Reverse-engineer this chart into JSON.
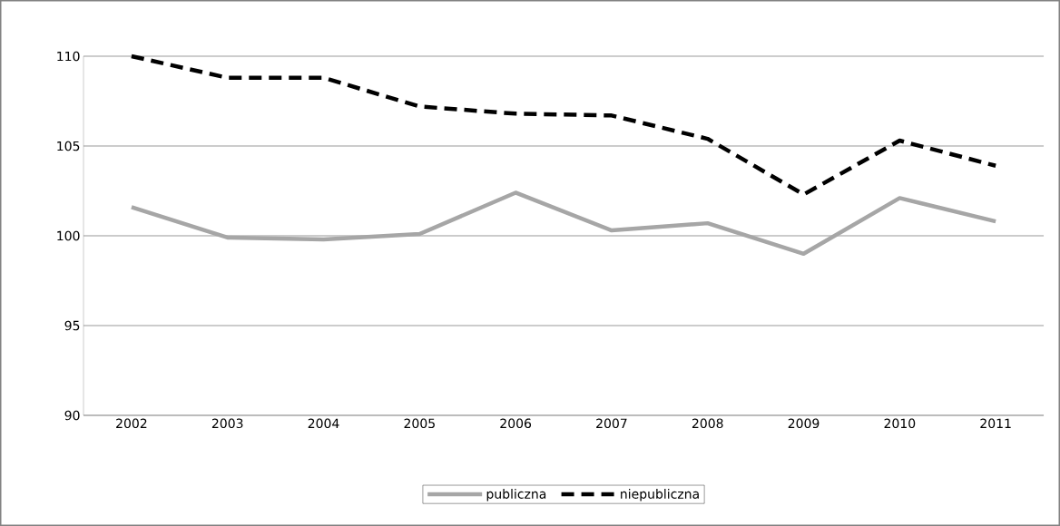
{
  "chart_data": {
    "type": "line",
    "categories": [
      "2002",
      "2003",
      "2004",
      "2005",
      "2006",
      "2007",
      "2008",
      "2009",
      "2010",
      "2011"
    ],
    "series": [
      {
        "name": "publiczna",
        "color": "#a6a6a6",
        "line_style": "solid",
        "values": [
          101.6,
          99.9,
          99.8,
          100.1,
          102.4,
          100.3,
          100.7,
          99.0,
          102.1,
          100.8
        ]
      },
      {
        "name": "niepubliczna",
        "color": "#000000",
        "line_style": "dashed",
        "values": [
          110.0,
          108.8,
          108.8,
          107.2,
          106.8,
          106.7,
          105.4,
          102.3,
          105.3,
          103.9
        ]
      }
    ],
    "ylim": [
      90,
      110
    ],
    "yticks": [
      90,
      95,
      100,
      105,
      110
    ],
    "grid": "y",
    "legend": "bottom",
    "marker": "none"
  }
}
